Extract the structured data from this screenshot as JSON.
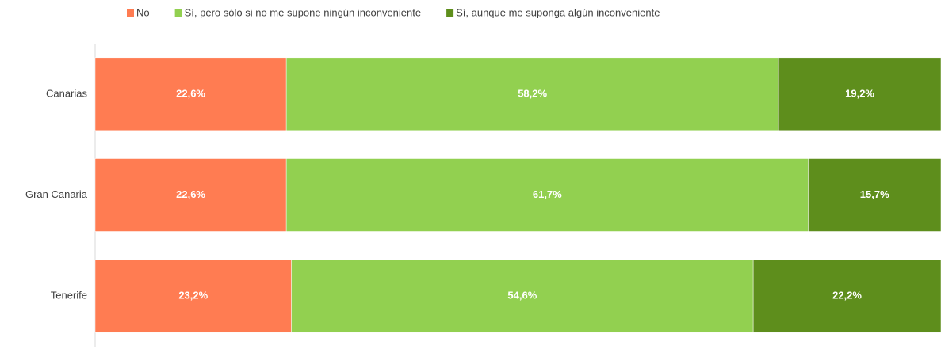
{
  "chart_data": {
    "type": "bar",
    "orientation": "horizontal",
    "stacked": true,
    "categories": [
      "Canarias",
      "Gran Canaria",
      "Tenerife"
    ],
    "series": [
      {
        "name": "No",
        "color": "#ff7c52",
        "values": [
          22.6,
          22.6,
          23.2
        ],
        "value_labels": [
          "22,6%",
          "22,6%",
          "23,2%"
        ]
      },
      {
        "name": "Sí, pero sólo si no me supone ningún inconveniente",
        "color": "#92d050",
        "values": [
          58.2,
          61.7,
          54.6
        ],
        "value_labels": [
          "58,2%",
          "61,7%",
          "54,6%"
        ]
      },
      {
        "name": "Sí, aunque me suponga algún inconveniente",
        "color": "#5e8e1c",
        "values": [
          19.2,
          15.7,
          22.2
        ],
        "value_labels": [
          "19,2%",
          "15,7%",
          "22,2%"
        ]
      }
    ],
    "legend": "top"
  }
}
